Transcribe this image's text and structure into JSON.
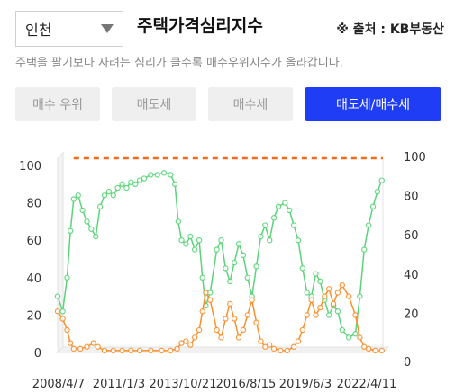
{
  "region_select": {
    "value": "인천"
  },
  "header": {
    "title": "주택가격심리지수",
    "source": "※ 출처 : KB부동산",
    "subtitle": "주택을 팔기보다 사려는 심리가 클수록 매수우위지수가 올라갑니다."
  },
  "tabs": [
    {
      "label": "매수 우위",
      "active": false
    },
    {
      "label": "매도세",
      "active": false
    },
    {
      "label": "매수세",
      "active": false
    },
    {
      "label": "매도세/매수세",
      "active": true
    }
  ],
  "colors": {
    "accent": "#1f3df5",
    "green_series": "#5cd37a",
    "orange_series": "#f7902e",
    "reference_line": "#f26b1d"
  },
  "chart_data": {
    "type": "line",
    "x": [
      "2008/4/7",
      "2011/1/3",
      "2013/10/21",
      "2016/8/15",
      "2019/6/3",
      "2022/4/11"
    ],
    "yticks_left": [
      "0",
      "20",
      "40",
      "60",
      "80",
      "100"
    ],
    "yticks_right": [
      "0",
      "20",
      "40",
      "60",
      "80",
      "100"
    ],
    "ylim": [
      0,
      100
    ],
    "reference_line": 100,
    "series": [
      {
        "color": "green",
        "points": [
          [
            2008.27,
            30
          ],
          [
            2008.5,
            22
          ],
          [
            2008.7,
            40
          ],
          [
            2008.85,
            65
          ],
          [
            2009.0,
            82
          ],
          [
            2009.2,
            84
          ],
          [
            2009.4,
            76
          ],
          [
            2009.6,
            70
          ],
          [
            2009.8,
            66
          ],
          [
            2010.0,
            62
          ],
          [
            2010.2,
            78
          ],
          [
            2010.4,
            84
          ],
          [
            2010.6,
            86
          ],
          [
            2010.8,
            84
          ],
          [
            2011.0,
            88
          ],
          [
            2011.2,
            90
          ],
          [
            2011.4,
            88
          ],
          [
            2011.6,
            91
          ],
          [
            2011.8,
            90
          ],
          [
            2012.0,
            92
          ],
          [
            2012.2,
            93
          ],
          [
            2012.5,
            95
          ],
          [
            2012.8,
            95
          ],
          [
            2013.1,
            96
          ],
          [
            2013.4,
            95
          ],
          [
            2013.6,
            90
          ],
          [
            2013.75,
            70
          ],
          [
            2013.9,
            60
          ],
          [
            2014.1,
            58
          ],
          [
            2014.3,
            62
          ],
          [
            2014.5,
            55
          ],
          [
            2014.7,
            60
          ],
          [
            2014.85,
            40
          ],
          [
            2015.0,
            25
          ],
          [
            2015.2,
            32
          ],
          [
            2015.5,
            55
          ],
          [
            2015.7,
            60
          ],
          [
            2015.9,
            45
          ],
          [
            2016.1,
            38
          ],
          [
            2016.3,
            48
          ],
          [
            2016.5,
            58
          ],
          [
            2016.7,
            52
          ],
          [
            2016.9,
            40
          ],
          [
            2017.1,
            30
          ],
          [
            2017.3,
            46
          ],
          [
            2017.5,
            62
          ],
          [
            2017.7,
            68
          ],
          [
            2017.9,
            60
          ],
          [
            2018.1,
            72
          ],
          [
            2018.3,
            78
          ],
          [
            2018.6,
            80
          ],
          [
            2018.8,
            76
          ],
          [
            2019.0,
            68
          ],
          [
            2019.2,
            60
          ],
          [
            2019.4,
            45
          ],
          [
            2019.6,
            32
          ],
          [
            2019.8,
            30
          ],
          [
            2020.0,
            42
          ],
          [
            2020.2,
            38
          ],
          [
            2020.4,
            28
          ],
          [
            2020.6,
            20
          ],
          [
            2020.8,
            25
          ],
          [
            2021.0,
            22
          ],
          [
            2021.2,
            12
          ],
          [
            2021.5,
            8
          ],
          [
            2021.8,
            10
          ],
          [
            2022.0,
            30
          ],
          [
            2022.2,
            55
          ],
          [
            2022.4,
            68
          ],
          [
            2022.6,
            78
          ],
          [
            2022.8,
            86
          ],
          [
            2023.0,
            92
          ]
        ]
      },
      {
        "color": "orange",
        "points": [
          [
            2008.27,
            22
          ],
          [
            2008.5,
            18
          ],
          [
            2008.7,
            12
          ],
          [
            2008.85,
            5
          ],
          [
            2009.0,
            2
          ],
          [
            2009.3,
            2
          ],
          [
            2009.6,
            3
          ],
          [
            2009.9,
            5
          ],
          [
            2010.1,
            3
          ],
          [
            2010.4,
            1
          ],
          [
            2010.8,
            1
          ],
          [
            2011.2,
            1
          ],
          [
            2011.6,
            1
          ],
          [
            2012.0,
            1
          ],
          [
            2012.5,
            1
          ],
          [
            2013.0,
            1
          ],
          [
            2013.4,
            1
          ],
          [
            2013.7,
            2
          ],
          [
            2013.9,
            5
          ],
          [
            2014.1,
            6
          ],
          [
            2014.3,
            4
          ],
          [
            2014.5,
            8
          ],
          [
            2014.7,
            12
          ],
          [
            2014.85,
            22
          ],
          [
            2015.0,
            32
          ],
          [
            2015.2,
            28
          ],
          [
            2015.5,
            12
          ],
          [
            2015.7,
            8
          ],
          [
            2015.9,
            18
          ],
          [
            2016.1,
            26
          ],
          [
            2016.3,
            18
          ],
          [
            2016.5,
            8
          ],
          [
            2016.7,
            12
          ],
          [
            2016.9,
            20
          ],
          [
            2017.1,
            28
          ],
          [
            2017.3,
            16
          ],
          [
            2017.5,
            6
          ],
          [
            2017.7,
            3
          ],
          [
            2017.9,
            4
          ],
          [
            2018.1,
            2
          ],
          [
            2018.4,
            1
          ],
          [
            2018.7,
            1
          ],
          [
            2019.0,
            3
          ],
          [
            2019.2,
            6
          ],
          [
            2019.4,
            12
          ],
          [
            2019.6,
            20
          ],
          [
            2019.8,
            28
          ],
          [
            2020.0,
            20
          ],
          [
            2020.2,
            24
          ],
          [
            2020.4,
            30
          ],
          [
            2020.6,
            34
          ],
          [
            2020.8,
            26
          ],
          [
            2021.0,
            32
          ],
          [
            2021.2,
            36
          ],
          [
            2021.5,
            30
          ],
          [
            2021.8,
            20
          ],
          [
            2022.0,
            8
          ],
          [
            2022.2,
            3
          ],
          [
            2022.4,
            2
          ],
          [
            2022.7,
            1
          ],
          [
            2023.0,
            1
          ]
        ]
      }
    ]
  }
}
